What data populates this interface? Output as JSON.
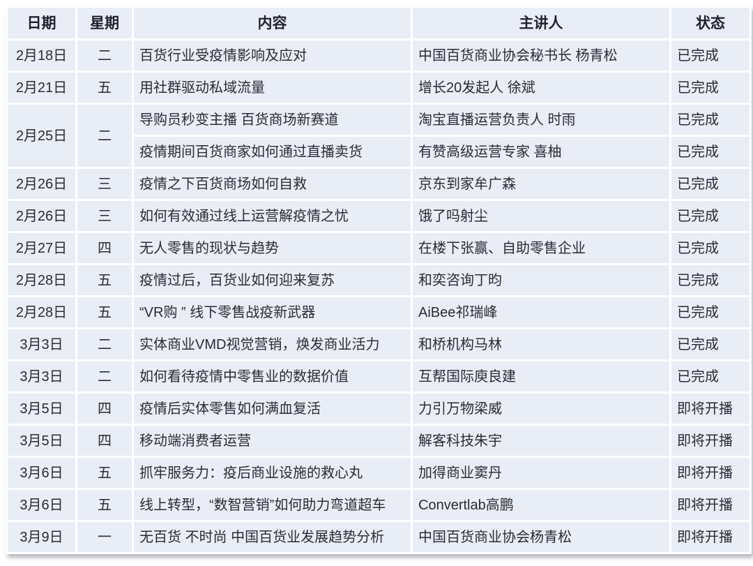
{
  "table": {
    "colors": {
      "cell_bg": "#e9edf5",
      "gridline": "#ffffff",
      "text": "#292c35"
    },
    "columns": [
      {
        "key": "date",
        "label": "日期"
      },
      {
        "key": "weekday",
        "label": "星期"
      },
      {
        "key": "content",
        "label": "内容"
      },
      {
        "key": "speaker",
        "label": "主讲人"
      },
      {
        "key": "status",
        "label": "状态"
      }
    ],
    "rows": [
      {
        "date": "2月18日",
        "weekday": "二",
        "content": "百货行业受疫情影响及应对",
        "speaker": "中国百货商业协会秘书长 杨青松",
        "status": "已完成"
      },
      {
        "date": "2月21日",
        "weekday": "五",
        "content": "用社群驱动私域流量",
        "speaker": "增长20发起人 徐斌",
        "status": "已完成"
      },
      {
        "date": "2月25日",
        "weekday": "二",
        "date_rowspan": 2,
        "content": "导购员秒变主播 百货商场新赛道",
        "speaker": "淘宝直播运营负责人 时雨",
        "status": "已完成"
      },
      {
        "date": null,
        "weekday": null,
        "content": "疫情期间百货商家如何通过直播卖货",
        "speaker": "有赞高级运营专家 喜柚",
        "status": "已完成"
      },
      {
        "date": "2月26日",
        "weekday": "三",
        "content": "疫情之下百货商场如何自救",
        "speaker": "京东到家牟广森",
        "status": "已完成"
      },
      {
        "date": "2月26日",
        "weekday": "三",
        "content": "如何有效通过线上运营解疫情之忧",
        "speaker": "饿了吗射尘",
        "status": "已完成"
      },
      {
        "date": "2月27日",
        "weekday": "四",
        "content": "无人零售的现状与趋势",
        "speaker": "在楼下张赢、自助零售企业",
        "status": "已完成"
      },
      {
        "date": "2月28日",
        "weekday": "五",
        "content": "疫情过后，百货业如何迎来复苏",
        "speaker": "和奕咨询丁昀",
        "status": "已完成"
      },
      {
        "date": "2月28日",
        "weekday": "五",
        "content": "“VR购 ” 线下零售战疫新武器",
        "speaker": "AiBee祁瑞峰",
        "status": "已完成"
      },
      {
        "date": "3月3日",
        "weekday": "二",
        "content": "实体商业VMD视觉营销，焕发商业活力",
        "speaker": "和桥机构马林",
        "status": "已完成"
      },
      {
        "date": "3月3日",
        "weekday": "二",
        "content": "如何看待疫情中零售业的数据价值",
        "speaker": "互帮国际庾良建",
        "status": "已完成"
      },
      {
        "date": "3月5日",
        "weekday": "四",
        "content": "疫情后实体零售如何满血复活",
        "speaker": "力引万物梁威",
        "status": "即将开播"
      },
      {
        "date": "3月5日",
        "weekday": "四",
        "content": "移动端消费者运营",
        "speaker": "解客科技朱宇",
        "status": "即将开播"
      },
      {
        "date": "3月6日",
        "weekday": "五",
        "content": "抓牢服务力：疫后商业设施的救心丸",
        "speaker": "加得商业窦丹",
        "status": "即将开播"
      },
      {
        "date": "3月6日",
        "weekday": "五",
        "content": "线上转型，“数智营销”如何助力弯道超车",
        "speaker": "Convertlab高鹏",
        "status": "即将开播"
      },
      {
        "date": "3月9日",
        "weekday": "一",
        "content": "无百货 不时尚 中国百货业发展趋势分析",
        "speaker": "中国百货商业协会杨青松",
        "status": "即将开播"
      }
    ]
  }
}
